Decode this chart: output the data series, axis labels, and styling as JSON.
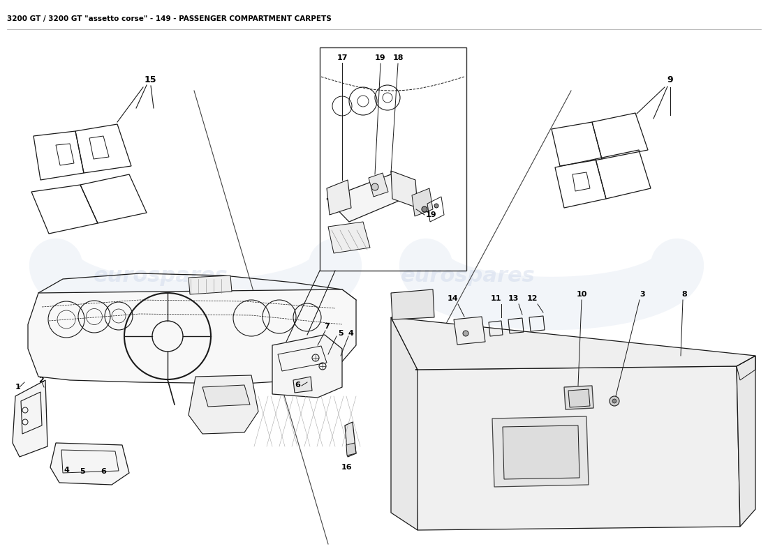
{
  "title": "3200 GT / 3200 GT \"assetto corse\" - 149 - PASSENGER COMPARTMENT CARPETS",
  "title_fontsize": 7.5,
  "bg_color": "#ffffff",
  "line_color": "#1a1a1a",
  "lw": 0.9,
  "fig_width": 11.0,
  "fig_height": 8.0,
  "dpi": 100,
  "watermark_color": "#c8d4e8",
  "watermark_alpha": 0.22
}
